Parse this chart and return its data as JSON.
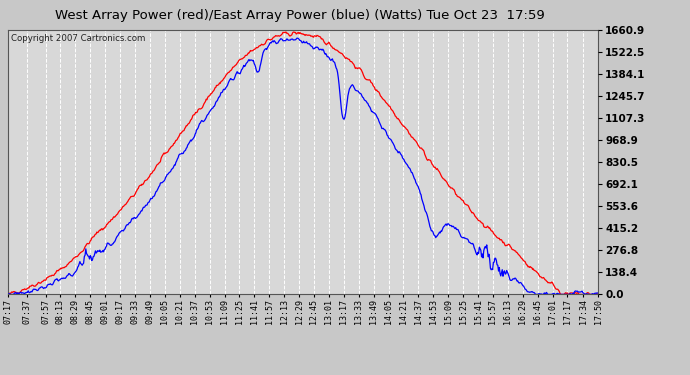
{
  "title": "West Array Power (red)/East Array Power (blue) (Watts) Tue Oct 23  17:59",
  "copyright": "Copyright 2007 Cartronics.com",
  "background_color": "#c8c8c8",
  "plot_bg_color": "#d8d8d8",
  "grid_color": "#ffffff",
  "red_color": "#ff0000",
  "blue_color": "#0000ff",
  "ymin": 0.0,
  "ymax": 1660.9,
  "yticks": [
    0.0,
    138.4,
    276.8,
    415.2,
    553.6,
    692.1,
    830.5,
    968.9,
    1107.3,
    1245.7,
    1384.1,
    1522.5,
    1660.9
  ],
  "x_labels": [
    "07:17",
    "07:37",
    "07:57",
    "08:13",
    "08:29",
    "08:45",
    "09:01",
    "09:17",
    "09:33",
    "09:49",
    "10:05",
    "10:21",
    "10:37",
    "10:53",
    "11:09",
    "11:25",
    "11:41",
    "11:57",
    "12:13",
    "12:29",
    "12:45",
    "13:01",
    "13:17",
    "13:33",
    "13:49",
    "14:05",
    "14:21",
    "14:37",
    "14:53",
    "15:09",
    "15:25",
    "15:41",
    "15:57",
    "16:13",
    "16:29",
    "16:45",
    "17:01",
    "17:17",
    "17:34",
    "17:50"
  ]
}
